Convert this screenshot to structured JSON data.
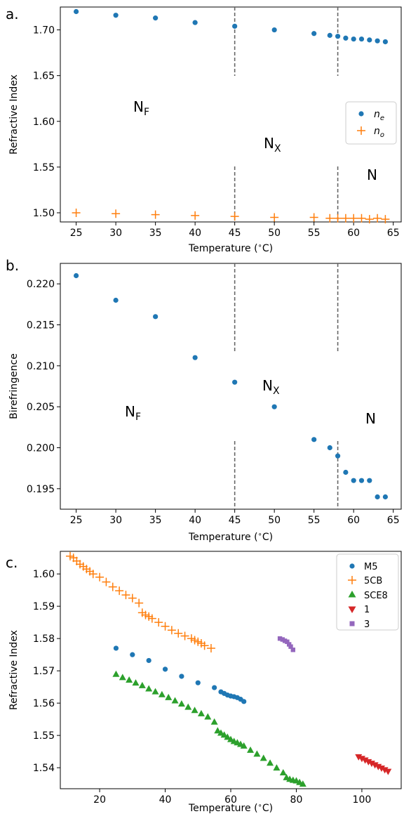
{
  "panels": [
    {
      "panel_label": "a.",
      "xlabel": "Temperature ($^\\circ$C)",
      "xlabel_main": "Temperature (",
      "xlabel_deg": "∘",
      "xlabel_tail": "C)",
      "ylabel": "Refractive Index",
      "legend": [
        {
          "label": "n_e",
          "base": "n",
          "sub": "e",
          "marker": "circle",
          "color": "#1f77b4"
        },
        {
          "label": "n_o",
          "base": "n",
          "sub": "o",
          "marker": "plus",
          "color": "#ff7f0e"
        }
      ],
      "phase_labels": [
        {
          "base": "N",
          "sub": "F"
        },
        {
          "base": "N",
          "sub": "X"
        },
        {
          "base": "N",
          "sub": ""
        }
      ]
    },
    {
      "panel_label": "b.",
      "xlabel": "Temperature ($^\\circ$C)",
      "xlabel_main": "Temperature (",
      "xlabel_deg": "∘",
      "xlabel_tail": "C)",
      "ylabel": "Birefringence",
      "legend": [],
      "phase_labels": [
        {
          "base": "N",
          "sub": "F"
        },
        {
          "base": "N",
          "sub": "X"
        },
        {
          "base": "N",
          "sub": ""
        }
      ]
    },
    {
      "panel_label": "c.",
      "xlabel": "Temperature ($^\\circ$C)",
      "xlabel_main": "Temperature (",
      "xlabel_deg": "∘",
      "xlabel_tail": "C)",
      "ylabel": "Refractive Index",
      "legend": [
        {
          "label": "M5",
          "base": "M5",
          "sub": "",
          "marker": "circle",
          "color": "#1f77b4"
        },
        {
          "label": "5CB",
          "base": "5CB",
          "sub": "",
          "marker": "plus",
          "color": "#ff7f0e"
        },
        {
          "label": "SCE8",
          "base": "SCE8",
          "sub": "",
          "marker": "triangle-up",
          "color": "#2ca02c"
        },
        {
          "label": "1",
          "base": "1",
          "sub": "",
          "marker": "triangle-down",
          "color": "#d62728"
        },
        {
          "label": "3",
          "base": "3",
          "sub": "",
          "marker": "square",
          "color": "#9467bd"
        }
      ],
      "phase_labels": []
    }
  ],
  "chart_data": [
    {
      "type": "scatter",
      "xlabel": "Temperature ($^\\circ$C)",
      "ylabel": "Refractive Index",
      "xlim": [
        23,
        66
      ],
      "ylim": [
        1.49,
        1.725
      ],
      "xticks": [
        25,
        30,
        35,
        40,
        45,
        50,
        55,
        60,
        65
      ],
      "yticks": [
        1.5,
        1.55,
        1.6,
        1.65,
        1.7
      ],
      "ytick_decimals": 2,
      "grid": false,
      "legend_position": "center-right",
      "vlines": [
        45,
        58
      ],
      "series": [
        {
          "name": "n_e",
          "marker": "circle",
          "color": "#1f77b4",
          "x": [
            25,
            30,
            35,
            40,
            45,
            50,
            55,
            57,
            58,
            59,
            60,
            61,
            62,
            63,
            64
          ],
          "y": [
            1.72,
            1.716,
            1.713,
            1.708,
            1.704,
            1.7,
            1.696,
            1.694,
            1.693,
            1.691,
            1.69,
            1.69,
            1.689,
            1.688,
            1.687
          ]
        },
        {
          "name": "n_o",
          "marker": "plus",
          "color": "#ff7f0e",
          "x": [
            25,
            30,
            35,
            40,
            45,
            50,
            55,
            57,
            58,
            59,
            60,
            61,
            62,
            63,
            64
          ],
          "y": [
            1.5,
            1.499,
            1.498,
            1.497,
            1.496,
            1.495,
            1.495,
            1.494,
            1.494,
            1.494,
            1.494,
            1.494,
            1.493,
            1.494,
            1.493
          ]
        }
      ],
      "phase_regions": [
        "N_F",
        "N_X",
        "N"
      ]
    },
    {
      "type": "scatter",
      "xlabel": "Temperature ($^\\circ$C)",
      "ylabel": "Birefringence",
      "xlim": [
        23,
        66
      ],
      "ylim": [
        0.1925,
        0.2225
      ],
      "xticks": [
        25,
        30,
        35,
        40,
        45,
        50,
        55,
        60,
        65
      ],
      "yticks": [
        0.195,
        0.2,
        0.205,
        0.21,
        0.215,
        0.22
      ],
      "ytick_decimals": 3,
      "grid": false,
      "vlines": [
        45,
        58
      ],
      "series": [
        {
          "name": "",
          "marker": "circle",
          "color": "#1f77b4",
          "x": [
            25,
            30,
            35,
            40,
            45,
            50,
            55,
            57,
            58,
            59,
            60,
            61,
            62,
            63,
            64
          ],
          "y": [
            0.221,
            0.218,
            0.216,
            0.211,
            0.208,
            0.205,
            0.201,
            0.2,
            0.199,
            0.197,
            0.196,
            0.196,
            0.196,
            0.194,
            0.194
          ]
        }
      ],
      "phase_regions": [
        "N_F",
        "N_X",
        "N"
      ]
    },
    {
      "type": "scatter",
      "xlabel": "Temperature ($^\\circ$C)",
      "ylabel": "Refractive Index",
      "xlim": [
        8,
        112
      ],
      "ylim": [
        1.5335,
        1.607
      ],
      "xticks": [
        20,
        40,
        60,
        80,
        100
      ],
      "yticks": [
        1.54,
        1.55,
        1.56,
        1.57,
        1.58,
        1.59,
        1.6
      ],
      "ytick_decimals": 2,
      "grid": false,
      "legend_position": "top-right",
      "series": [
        {
          "name": "M5",
          "marker": "circle",
          "color": "#1f77b4",
          "x": [
            25,
            30,
            35,
            40,
            45,
            50,
            55,
            57,
            58,
            59,
            60,
            61,
            62,
            63,
            64
          ],
          "y": [
            1.577,
            1.575,
            1.5732,
            1.5705,
            1.5683,
            1.5663,
            1.5648,
            1.5635,
            1.563,
            1.5625,
            1.5622,
            1.562,
            1.5617,
            1.5612,
            1.5605
          ]
        },
        {
          "name": "5CB",
          "marker": "plus",
          "color": "#ff7f0e",
          "x": [
            11,
            12,
            13,
            14,
            15,
            16,
            17,
            18,
            20,
            22,
            24,
            26,
            28,
            30,
            32,
            33,
            34,
            35,
            36,
            38,
            40,
            42,
            44,
            46,
            48,
            49,
            50,
            51,
            52,
            54
          ],
          "y": [
            1.6055,
            1.605,
            1.604,
            1.603,
            1.6023,
            1.6015,
            1.6008,
            1.6,
            1.599,
            1.5975,
            1.596,
            1.5948,
            1.5935,
            1.5925,
            1.591,
            1.588,
            1.5873,
            1.5868,
            1.5862,
            1.585,
            1.5838,
            1.5826,
            1.5816,
            1.5808,
            1.58,
            1.5795,
            1.579,
            1.5785,
            1.5778,
            1.577
          ]
        },
        {
          "name": "SCE8",
          "marker": "triangle-up",
          "color": "#2ca02c",
          "x": [
            25,
            27,
            29,
            31,
            33,
            35,
            37,
            39,
            41,
            43,
            45,
            47,
            49,
            51,
            53,
            55,
            56,
            57,
            58,
            59,
            60,
            61,
            62,
            63,
            64,
            66,
            68,
            70,
            72,
            74,
            76,
            77,
            78,
            79,
            80,
            81,
            82
          ],
          "y": [
            1.569,
            1.568,
            1.5672,
            1.5663,
            1.5655,
            1.5645,
            1.5636,
            1.5627,
            1.5618,
            1.5608,
            1.5598,
            1.5588,
            1.5578,
            1.5568,
            1.5558,
            1.5542,
            1.5515,
            1.5508,
            1.5502,
            1.5495,
            1.5488,
            1.5482,
            1.5478,
            1.5473,
            1.5468,
            1.5455,
            1.5443,
            1.543,
            1.5415,
            1.54,
            1.5385,
            1.537,
            1.5365,
            1.5362,
            1.536,
            1.5355,
            1.535
          ]
        },
        {
          "name": "1",
          "marker": "triangle-down",
          "color": "#d62728",
          "x": [
            99,
            100,
            101,
            102,
            103,
            104,
            105,
            106,
            107,
            108
          ],
          "y": [
            1.5433,
            1.5428,
            1.5423,
            1.5418,
            1.5413,
            1.5408,
            1.5403,
            1.5398,
            1.5393,
            1.5388
          ]
        },
        {
          "name": "3",
          "marker": "square",
          "color": "#9467bd",
          "x": [
            75,
            75.8,
            76.5,
            77.2,
            77.8,
            78.3,
            79
          ],
          "y": [
            1.58,
            1.5797,
            1.5793,
            1.579,
            1.5782,
            1.5775,
            1.5765
          ]
        }
      ]
    }
  ]
}
